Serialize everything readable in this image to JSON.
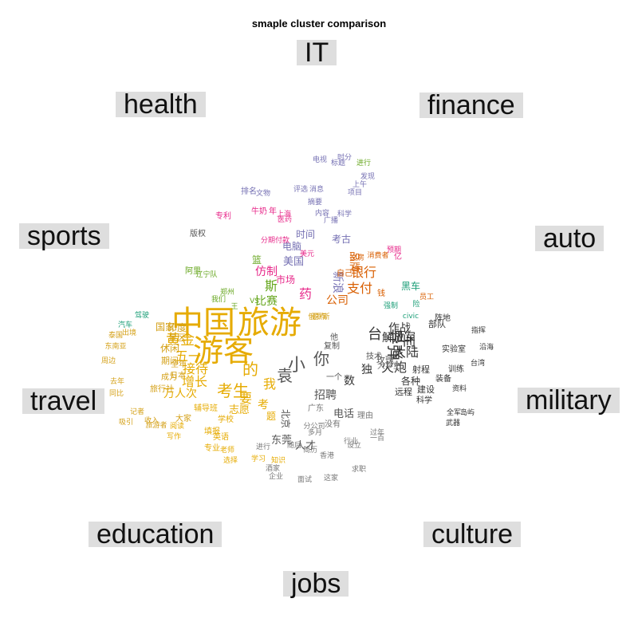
{
  "chart_data": {
    "type": "wordcloud",
    "title": "smaple cluster comparison",
    "categories": [
      {
        "label": "IT",
        "color": "#7570b3"
      },
      {
        "label": "finance",
        "color": "#d95f02"
      },
      {
        "label": "auto",
        "color": "#1b9e77"
      },
      {
        "label": "military",
        "color": "#444444"
      },
      {
        "label": "culture",
        "color": "#666666"
      },
      {
        "label": "jobs",
        "color": "#777777"
      },
      {
        "label": "education",
        "color": "#e6ab02"
      },
      {
        "label": "travel",
        "color": "#d4a017"
      },
      {
        "label": "sports",
        "color": "#66a61e"
      },
      {
        "label": "health",
        "color": "#e7298a"
      }
    ],
    "words": [
      {
        "text": "中国",
        "size": 40,
        "color": "#e6ab02"
      },
      {
        "text": "旅游",
        "size": 40,
        "color": "#e6ab02"
      },
      {
        "text": "游客",
        "size": 38,
        "color": "#e6ab02"
      },
      {
        "text": "小",
        "size": 22,
        "color": "#555555"
      },
      {
        "text": "你",
        "size": 20,
        "color": "#555555"
      },
      {
        "text": "袁",
        "size": 20,
        "color": "#555555"
      },
      {
        "text": "台",
        "size": 18,
        "color": "#333333"
      },
      {
        "text": "导弹",
        "size": 20,
        "color": "#333333"
      },
      {
        "text": "军",
        "size": 18,
        "color": "#333333"
      },
      {
        "text": "大陆",
        "size": 16,
        "color": "#333333"
      },
      {
        "text": "火炮",
        "size": 16,
        "color": "#333333"
      },
      {
        "text": "作战",
        "size": 14,
        "color": "#333333"
      },
      {
        "text": "解放军",
        "size": 14,
        "color": "#333333"
      },
      {
        "text": "独",
        "size": 14,
        "color": "#333333"
      },
      {
        "text": "数",
        "size": 14,
        "color": "#333333"
      },
      {
        "text": "的",
        "size": 20,
        "color": "#e6ab02"
      },
      {
        "text": "黄金",
        "size": 18,
        "color": "#e6ab02"
      },
      {
        "text": "五一",
        "size": 16,
        "color": "#e6ab02"
      },
      {
        "text": "接待",
        "size": 16,
        "color": "#e6ab02"
      },
      {
        "text": "增长",
        "size": 16,
        "color": "#e6ab02"
      },
      {
        "text": "万人次",
        "size": 14,
        "color": "#e6ab02"
      },
      {
        "text": "考生",
        "size": 20,
        "color": "#e6ab02"
      },
      {
        "text": "要",
        "size": 16,
        "color": "#e6ab02"
      },
      {
        "text": "我",
        "size": 16,
        "color": "#e6ab02"
      },
      {
        "text": "考",
        "size": 14,
        "color": "#e6ab02"
      },
      {
        "text": "志愿",
        "size": 13,
        "color": "#e6ab02"
      },
      {
        "text": "题",
        "size": 12,
        "color": "#e6ab02"
      },
      {
        "text": "支付",
        "size": 16,
        "color": "#d95f02"
      },
      {
        "text": "银行",
        "size": 16,
        "color": "#d95f02"
      },
      {
        "text": "公司",
        "size": 14,
        "color": "#d95f02"
      },
      {
        "text": "品牌",
        "size": 13,
        "color": "#d95f02"
      },
      {
        "text": "新浪",
        "size": 14,
        "color": "#7570b3"
      },
      {
        "text": "美国",
        "size": 13,
        "color": "#7570b3"
      },
      {
        "text": "电脑",
        "size": 12,
        "color": "#7570b3"
      },
      {
        "text": "时间",
        "size": 12,
        "color": "#7570b3"
      },
      {
        "text": "考古",
        "size": 12,
        "color": "#7570b3"
      },
      {
        "text": "仿制",
        "size": 14,
        "color": "#e7298a"
      },
      {
        "text": "药",
        "size": 16,
        "color": "#e7298a"
      },
      {
        "text": "市场",
        "size": 12,
        "color": "#e7298a"
      },
      {
        "text": "斯",
        "size": 16,
        "color": "#66a61e"
      },
      {
        "text": "比赛",
        "size": 14,
        "color": "#66a61e"
      },
      {
        "text": "篮",
        "size": 12,
        "color": "#66a61e"
      },
      {
        "text": "招聘",
        "size": 14,
        "color": "#555555"
      },
      {
        "text": "电话",
        "size": 13,
        "color": "#555555"
      },
      {
        "text": "人才",
        "size": 13,
        "color": "#555555"
      },
      {
        "text": "东莞",
        "size": 13,
        "color": "#555555"
      },
      {
        "text": "北京",
        "size": 12,
        "color": "#555555"
      },
      {
        "text": "各种",
        "size": 12,
        "color": "#333333"
      },
      {
        "text": "射程",
        "size": 11,
        "color": "#333333"
      },
      {
        "text": "远程",
        "size": 11,
        "color": "#333333"
      },
      {
        "text": "建设",
        "size": 11,
        "color": "#333333"
      },
      {
        "text": "部队",
        "size": 11,
        "color": "#333333"
      },
      {
        "text": "阵地",
        "size": 10,
        "color": "#333333"
      },
      {
        "text": "装备",
        "size": 10,
        "color": "#333333"
      },
      {
        "text": "科学",
        "size": 10,
        "color": "#333333"
      },
      {
        "text": "训练",
        "size": 10,
        "color": "#333333"
      },
      {
        "text": "实验室",
        "size": 10,
        "color": "#333333"
      },
      {
        "text": "资料",
        "size": 9,
        "color": "#333333"
      },
      {
        "text": "武器",
        "size": 9,
        "color": "#333333"
      },
      {
        "text": "全军",
        "size": 9,
        "color": "#333333"
      },
      {
        "text": "岛屿",
        "size": 9,
        "color": "#333333"
      },
      {
        "text": "台湾",
        "size": 9,
        "color": "#333333"
      },
      {
        "text": "沿海",
        "size": 9,
        "color": "#333333"
      },
      {
        "text": "指挥",
        "size": 9,
        "color": "#333333"
      },
      {
        "text": "国家",
        "size": 12,
        "color": "#d4a017"
      },
      {
        "text": "印度",
        "size": 12,
        "color": "#d4a017"
      },
      {
        "text": "景区",
        "size": 11,
        "color": "#d4a017"
      },
      {
        "text": "休闲",
        "size": 12,
        "color": "#d4a017"
      },
      {
        "text": "期间",
        "size": 11,
        "color": "#d4a017"
      },
      {
        "text": "全年",
        "size": 10,
        "color": "#d4a017"
      },
      {
        "text": "日本",
        "size": 10,
        "color": "#d4a017"
      },
      {
        "text": "成为",
        "size": 10,
        "color": "#d4a017"
      },
      {
        "text": "旅行社",
        "size": 10,
        "color": "#d4a017"
      },
      {
        "text": "大家",
        "size": 10,
        "color": "#d4a017"
      },
      {
        "text": "辅导班",
        "size": 10,
        "color": "#e6ab02"
      },
      {
        "text": "填报",
        "size": 10,
        "color": "#e6ab02"
      },
      {
        "text": "学校",
        "size": 10,
        "color": "#e6ab02"
      },
      {
        "text": "英语",
        "size": 10,
        "color": "#e6ab02"
      },
      {
        "text": "专业",
        "size": 10,
        "color": "#e6ab02"
      },
      {
        "text": "老师",
        "size": 9,
        "color": "#e6ab02"
      },
      {
        "text": "选择",
        "size": 9,
        "color": "#e6ab02"
      },
      {
        "text": "阅读",
        "size": 9,
        "color": "#e6ab02"
      },
      {
        "text": "写作",
        "size": 9,
        "color": "#e6ab02"
      },
      {
        "text": "学习",
        "size": 9,
        "color": "#e6ab02"
      },
      {
        "text": "知识",
        "size": 9,
        "color": "#e6ab02"
      },
      {
        "text": "酒家",
        "size": 9,
        "color": "#777777"
      },
      {
        "text": "企业",
        "size": 9,
        "color": "#777777"
      },
      {
        "text": "面试",
        "size": 9,
        "color": "#777777"
      },
      {
        "text": "这家",
        "size": 9,
        "color": "#777777"
      },
      {
        "text": "求职",
        "size": 9,
        "color": "#777777"
      },
      {
        "text": "香港",
        "size": 9,
        "color": "#777777"
      },
      {
        "text": "行业",
        "size": 9,
        "color": "#777777"
      },
      {
        "text": "设立",
        "size": 9,
        "color": "#777777"
      },
      {
        "text": "过年",
        "size": 9,
        "color": "#777777"
      },
      {
        "text": "一百",
        "size": 9,
        "color": "#777777"
      },
      {
        "text": "多月",
        "size": 9,
        "color": "#777777"
      },
      {
        "text": "简历",
        "size": 9,
        "color": "#777777"
      },
      {
        "text": "随后",
        "size": 9,
        "color": "#777777"
      },
      {
        "text": "进行",
        "size": 9,
        "color": "#777777"
      },
      {
        "text": "分公司",
        "size": 9,
        "color": "#777777"
      },
      {
        "text": "没有",
        "size": 10,
        "color": "#777777"
      },
      {
        "text": "理由",
        "size": 10,
        "color": "#777777"
      },
      {
        "text": "广东",
        "size": 10,
        "color": "#777777"
      },
      {
        "text": "大学生",
        "size": 10,
        "color": "#777777"
      },
      {
        "text": "技术",
        "size": 10,
        "color": "#555555"
      },
      {
        "text": "玫瑰",
        "size": 11,
        "color": "#555555"
      },
      {
        "text": "一个",
        "size": 10,
        "color": "#555555"
      },
      {
        "text": "复制",
        "size": 10,
        "color": "#555555"
      },
      {
        "text": "他",
        "size": 10,
        "color": "#555555"
      },
      {
        "text": "版权",
        "size": 10,
        "color": "#555555"
      },
      {
        "text": "辽宁队",
        "size": 9,
        "color": "#66a61e"
      },
      {
        "text": "阿里",
        "size": 10,
        "color": "#66a61e"
      },
      {
        "text": "我们",
        "size": 9,
        "color": "#66a61e"
      },
      {
        "text": "郑州",
        "size": 9,
        "color": "#66a61e"
      },
      {
        "text": "王",
        "size": 9,
        "color": "#66a61e"
      },
      {
        "text": "VS",
        "size": 9,
        "color": "#66a61e"
      },
      {
        "text": "进行",
        "size": 9,
        "color": "#66a61e"
      },
      {
        "text": "标题",
        "size": 9,
        "color": "#7570b3"
      },
      {
        "text": "电视",
        "size": 9,
        "color": "#7570b3"
      },
      {
        "text": "时分",
        "size": 9,
        "color": "#7570b3"
      },
      {
        "text": "发现",
        "size": 9,
        "color": "#7570b3"
      },
      {
        "text": "上午",
        "size": 9,
        "color": "#7570b3"
      },
      {
        "text": "项目",
        "size": 9,
        "color": "#7570b3"
      },
      {
        "text": "消息",
        "size": 9,
        "color": "#7570b3"
      },
      {
        "text": "评选",
        "size": 9,
        "color": "#7570b3"
      },
      {
        "text": "摘要",
        "size": 9,
        "color": "#7570b3"
      },
      {
        "text": "内容",
        "size": 9,
        "color": "#7570b3"
      },
      {
        "text": "科学",
        "size": 9,
        "color": "#7570b3"
      },
      {
        "text": "广播",
        "size": 9,
        "color": "#7570b3"
      },
      {
        "text": "排名",
        "size": 10,
        "color": "#7570b3"
      },
      {
        "text": "文物",
        "size": 9,
        "color": "#7570b3"
      },
      {
        "text": "医药",
        "size": 9,
        "color": "#e7298a"
      },
      {
        "text": "上海",
        "size": 9,
        "color": "#e7298a"
      },
      {
        "text": "专利",
        "size": 10,
        "color": "#e7298a"
      },
      {
        "text": "美元",
        "size": 9,
        "color": "#e7298a"
      },
      {
        "text": "分期付款",
        "size": 9,
        "color": "#e7298a"
      },
      {
        "text": "牛奶",
        "size": 10,
        "color": "#e7298a"
      },
      {
        "text": "年",
        "size": 10,
        "color": "#e7298a"
      },
      {
        "text": "预期",
        "size": 9,
        "color": "#e7298a"
      },
      {
        "text": "亿",
        "size": 10,
        "color": "#e7298a"
      },
      {
        "text": "消费者",
        "size": 9,
        "color": "#d95f02"
      },
      {
        "text": "自己",
        "size": 10,
        "color": "#d95f02"
      },
      {
        "text": "文房",
        "size": 9,
        "color": "#d95f02"
      },
      {
        "text": "钱",
        "size": 10,
        "color": "#d95f02"
      },
      {
        "text": "员工",
        "size": 9,
        "color": "#d95f02"
      },
      {
        "text": "civic",
        "size": 9,
        "color": "#1b9e77"
      },
      {
        "text": "强制",
        "size": 9,
        "color": "#1b9e77"
      },
      {
        "text": "黑车",
        "size": 12,
        "color": "#1b9e77"
      },
      {
        "text": "险",
        "size": 9,
        "color": "#1b9e77"
      },
      {
        "text": "驾驶",
        "size": 9,
        "color": "#1b9e77"
      },
      {
        "text": "汽车",
        "size": 9,
        "color": "#1b9e77"
      },
      {
        "text": "出境",
        "size": 9,
        "color": "#d4a017"
      },
      {
        "text": "泰国",
        "size": 9,
        "color": "#d4a017"
      },
      {
        "text": "东南亚",
        "size": 9,
        "color": "#d4a017"
      },
      {
        "text": "周边",
        "size": 9,
        "color": "#d4a017"
      },
      {
        "text": "去年",
        "size": 9,
        "color": "#d4a017"
      },
      {
        "text": "同比",
        "size": 9,
        "color": "#d4a017"
      },
      {
        "text": "记者",
        "size": 9,
        "color": "#d4a017"
      },
      {
        "text": "收入",
        "size": 9,
        "color": "#d4a017"
      },
      {
        "text": "旅游者",
        "size": 9,
        "color": "#d4a017"
      },
      {
        "text": "吸引",
        "size": 9,
        "color": "#d4a017"
      },
      {
        "text": "景点",
        "size": 9,
        "color": "#d4a017"
      },
      {
        "text": "俄罗斯",
        "size": 9,
        "color": "#d4a017"
      }
    ]
  }
}
